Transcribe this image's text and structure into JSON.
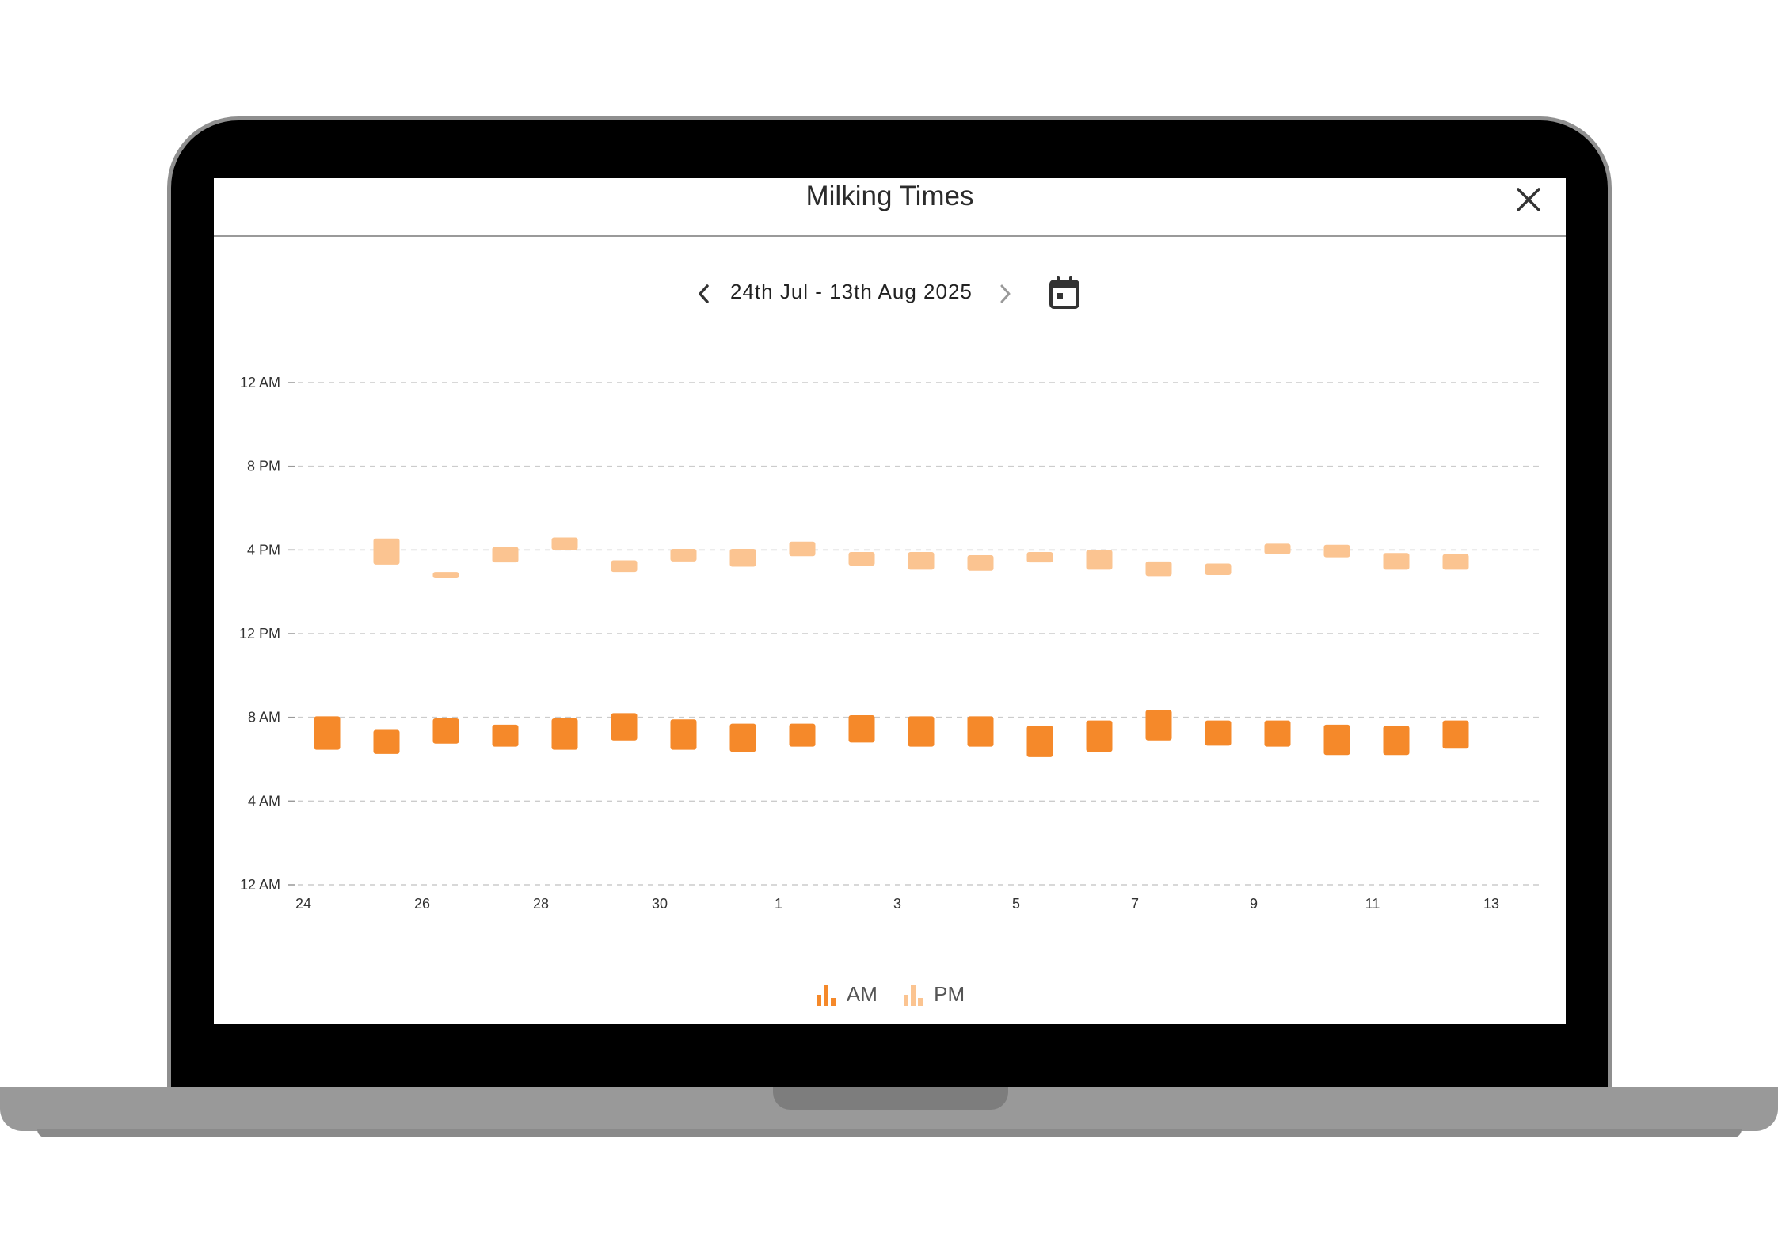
{
  "dialog": {
    "title": "Milking Times",
    "date_range": "24th Jul - 13th Aug 2025"
  },
  "icons": {
    "close": "close-icon",
    "prev": "chevron-left-icon",
    "next": "chevron-right-icon",
    "calendar": "calendar-icon",
    "legend": "bar-chart-icon"
  },
  "colors": {
    "am": "#f5892a",
    "pm": "#fbc491",
    "grid": "#cccccc"
  },
  "chart_data": {
    "type": "bar",
    "subtype": "floating-range",
    "x_axis": {
      "start_day": "24th Jul 2025",
      "tick_labels": [
        "24",
        "26",
        "28",
        "30",
        "1",
        "3",
        "5",
        "7",
        "9",
        "11",
        "13"
      ]
    },
    "y_axis": {
      "unit": "hour of day",
      "range": [
        0,
        24
      ],
      "tick_values": [
        0,
        4,
        8,
        12,
        16,
        20,
        24
      ],
      "tick_labels": [
        "12 AM",
        "4 AM",
        "8 AM",
        "12 PM",
        "4 PM",
        "8 PM",
        "12 AM"
      ]
    },
    "grid": true,
    "legend_position": "bottom-center",
    "series": [
      {
        "name": "AM",
        "color": "#f5892a",
        "ranges": [
          [
            6.45,
            8.05
          ],
          [
            6.25,
            7.4
          ],
          [
            6.75,
            7.95
          ],
          [
            6.6,
            7.65
          ],
          [
            6.45,
            7.95
          ],
          [
            6.9,
            8.2
          ],
          [
            6.45,
            7.9
          ],
          [
            6.35,
            7.7
          ],
          [
            6.6,
            7.7
          ],
          [
            6.8,
            8.1
          ],
          [
            6.6,
            8.05
          ],
          [
            6.6,
            8.05
          ],
          [
            6.1,
            7.6
          ],
          [
            6.35,
            7.85
          ],
          [
            6.9,
            8.35
          ],
          [
            6.65,
            7.85
          ],
          [
            6.6,
            7.85
          ],
          [
            6.2,
            7.65
          ],
          [
            6.2,
            7.6
          ],
          [
            6.5,
            7.85
          ]
        ]
      },
      {
        "name": "PM",
        "color": "#fbc491",
        "ranges": [
          [
            15.3,
            16.55
          ],
          [
            14.65,
            14.95
          ],
          [
            15.4,
            16.15
          ],
          [
            16.0,
            16.6
          ],
          [
            14.95,
            15.5
          ],
          [
            15.45,
            16.05
          ],
          [
            15.2,
            16.05
          ],
          [
            15.7,
            16.4
          ],
          [
            15.25,
            15.9
          ],
          [
            15.05,
            15.9
          ],
          [
            15.0,
            15.75
          ],
          [
            15.4,
            15.9
          ],
          [
            15.05,
            16.0
          ],
          [
            14.75,
            15.45
          ],
          [
            14.8,
            15.35
          ],
          [
            15.8,
            16.3
          ],
          [
            15.65,
            16.25
          ],
          [
            15.05,
            15.85
          ],
          [
            15.05,
            15.8
          ]
        ],
        "offset_days": 1
      }
    ],
    "legend": [
      "AM",
      "PM"
    ]
  }
}
